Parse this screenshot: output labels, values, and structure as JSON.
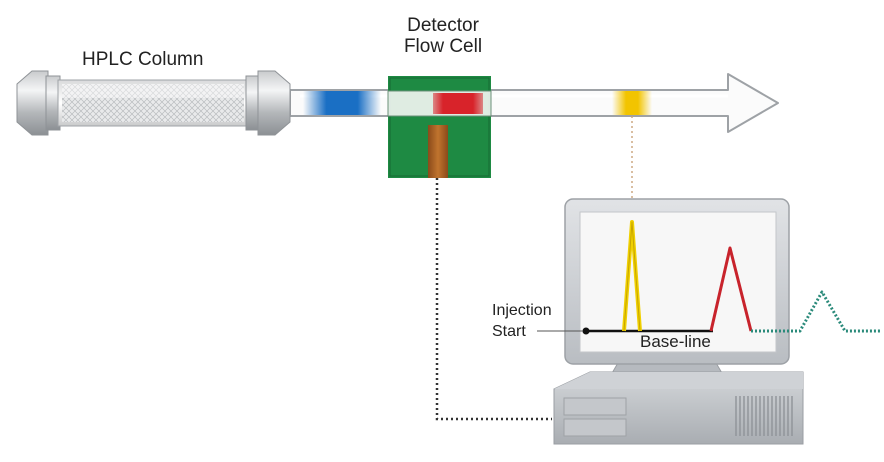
{
  "labels": {
    "column": "HPLC Column",
    "detector_line1": "Detector",
    "detector_line2": "Flow Cell",
    "injection_line1": "Injection",
    "injection_line2": "Start",
    "baseline": "Base-line"
  },
  "colors": {
    "band_blue": "#1a6fc4",
    "band_red": "#d8232a",
    "band_yellow": "#f2c400",
    "detector_green": "#1e8a43",
    "peak_yellow": "#f0d000",
    "peak_red": "#c8232c",
    "peak_teal": "#2a8a7a",
    "baseline": "#111111"
  },
  "icons": [
    "column-cylinder",
    "flow-arrow",
    "detector-chip",
    "computer-monitor",
    "computer-tower"
  ]
}
